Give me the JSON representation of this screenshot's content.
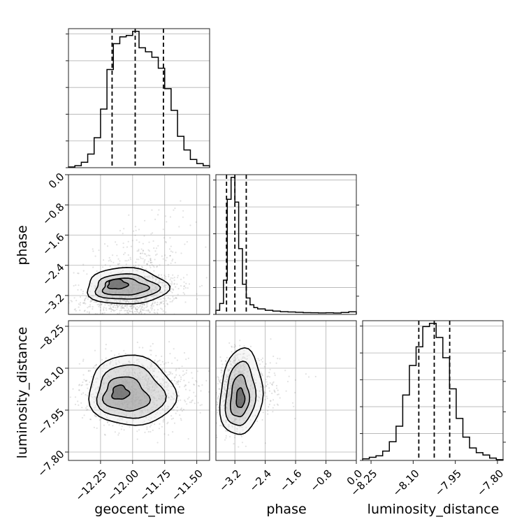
{
  "chart_data": {
    "type": "corner",
    "parameters": [
      "geocent_time",
      "phase",
      "luminosity_distance"
    ],
    "ranges": {
      "geocent_time": [
        -12.5,
        -11.4
      ],
      "phase": [
        -3.7,
        0.0
      ],
      "luminosity_distance": [
        -8.28,
        -7.78
      ]
    },
    "ticks": {
      "geocent_time": [
        -12.25,
        -12.0,
        -11.75,
        -11.5
      ],
      "phase_x": [
        -3.2,
        -2.4,
        -1.6,
        -0.8,
        0.0
      ],
      "phase_y": [
        0.0,
        -0.8,
        -1.6,
        -2.4,
        -3.2
      ],
      "luminosity_distance": [
        -8.25,
        -8.1,
        -7.95,
        -7.8
      ]
    },
    "tick_labels": {
      "geocent_time": [
        "−12.25",
        "−12.00",
        "−11.75",
        "−11.50"
      ],
      "phase_x": [
        "−3.2",
        "−2.4",
        "−1.6",
        "−0.8",
        "0.0"
      ],
      "phase_y": [
        "0.0",
        "−0.8",
        "−1.6",
        "−2.4",
        "−3.2"
      ],
      "luminosity_distance_y": [
        "−7.80",
        "−7.95",
        "−8.10",
        "−8.25"
      ],
      "luminosity_distance_x": [
        "−8.25",
        "−8.10",
        "−7.95",
        "−7.80"
      ]
    },
    "labels": {
      "geocent_time": "geocent_time",
      "phase": "phase",
      "luminosity_distance": "luminosity_distance"
    },
    "quantiles": {
      "geocent_time": [
        -12.16,
        -11.98,
        -11.76
      ],
      "phase": [
        -3.42,
        -3.2,
        -2.9
      ],
      "luminosity_distance": [
        -8.08,
        -8.025,
        -7.97
      ]
    },
    "histograms": {
      "geocent_time": {
        "edges": [
          -12.5,
          -12.45,
          -12.4,
          -12.35,
          -12.3,
          -12.25,
          -12.2,
          -12.15,
          -12.1,
          -12.05,
          -12.0,
          -11.95,
          -11.9,
          -11.85,
          -11.8,
          -11.75,
          -11.7,
          -11.65,
          -11.6,
          -11.55,
          -11.5,
          -11.45,
          -11.4
        ],
        "counts": [
          0.5,
          1.5,
          4,
          10,
          22,
          43,
          72,
          91,
          96,
          97,
          100,
          88,
          85,
          81,
          73,
          58,
          42,
          23,
          13,
          6,
          3,
          1.5
        ]
      },
      "phase": {
        "edges": [
          -3.7,
          -3.6,
          -3.5,
          -3.4,
          -3.3,
          -3.2,
          -3.1,
          -3.0,
          -2.9,
          -2.8,
          -2.7,
          -2.6,
          -2.4,
          -2.2,
          -2.0,
          -1.8,
          -1.6,
          -1.4,
          -1.2,
          -1.0,
          -0.8,
          -0.6,
          -0.4,
          -0.2,
          0.0
        ],
        "counts": [
          3,
          8,
          25,
          84,
          100,
          82,
          48,
          22,
          12,
          7,
          5,
          4,
          3,
          2.4,
          2,
          1.8,
          1.5,
          1.3,
          1.2,
          1.1,
          1.2,
          1.0,
          1.4,
          1.9
        ]
      },
      "luminosity_distance": {
        "edges": [
          -8.28,
          -8.2562,
          -8.2324,
          -8.2086,
          -8.1848,
          -8.161,
          -8.1372,
          -8.1134,
          -8.0896,
          -8.0658,
          -8.042,
          -8.0182,
          -7.9944,
          -7.9706,
          -7.9468,
          -7.923,
          -7.8992,
          -7.8754,
          -7.8516,
          -7.8278,
          -7.804,
          -7.78
        ],
        "counts": [
          1,
          2,
          3,
          6,
          12,
          22,
          42,
          61,
          73,
          86,
          88,
          79,
          66,
          46,
          27,
          15,
          8,
          5,
          3.5,
          1.5,
          0.5
        ]
      }
    },
    "samples_center": {
      "geocent_time_vs_phase": {
        "x": -12.05,
        "y": -3.15
      },
      "geocent_time_vs_luminosity_distance": {
        "x": -12.0,
        "y": -8.03
      },
      "phase_vs_luminosity_distance": {
        "x": -3.2,
        "y": -8.03
      }
    },
    "contour_levels": 4
  }
}
